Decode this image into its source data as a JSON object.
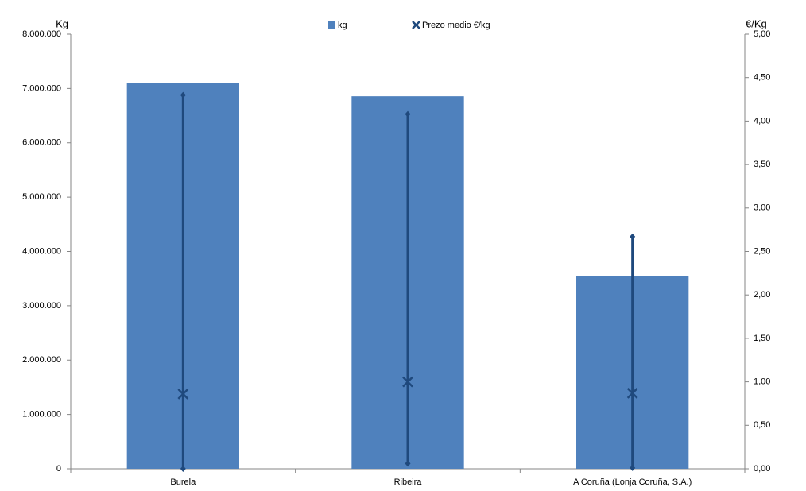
{
  "chart_data": {
    "type": "bar",
    "y_label": "Kg",
    "y2_label": "€/Kg",
    "categories": [
      "Burela",
      "Ribeira",
      "A Coruña (Lonja Coruña, S.A.)"
    ],
    "series": [
      {
        "name": "kg",
        "type": "bar",
        "color": "#4f81bd",
        "values": [
          7105000,
          6857000,
          3550000
        ]
      },
      {
        "name": "Prezo medio €/kg",
        "type": "hilo",
        "axis": "y2",
        "color": "#1f497d",
        "values": [
          0.86,
          1.0,
          0.87
        ],
        "high": [
          4.3,
          4.08,
          2.67
        ],
        "low": [
          0.0,
          0.06,
          0.01
        ]
      }
    ],
    "ylim": [
      0,
      8000000
    ],
    "yticks": [
      0,
      {
        "value": 1000000,
        "label": "1.000.000"
      },
      {
        "value": 2000000,
        "label": "2.000.000"
      },
      {
        "value": 3000000,
        "label": "3.000.000"
      },
      {
        "value": 4000000,
        "label": "4.000.000"
      },
      {
        "value": 5000000,
        "label": "5.000.000"
      },
      {
        "value": 6000000,
        "label": "6.000.000"
      },
      {
        "value": 7000000,
        "label": "7.000.000"
      },
      {
        "value": 8000000,
        "label": "8.000.000"
      }
    ],
    "y2lim": [
      0,
      5
    ],
    "y2ticks": [
      {
        "value": 0,
        "label": "0,00"
      },
      {
        "value": 0.5,
        "label": "0,50"
      },
      {
        "value": 1,
        "label": "1,00"
      },
      {
        "value": 1.5,
        "label": "1,50"
      },
      {
        "value": 2,
        "label": "2,00"
      },
      {
        "value": 2.5,
        "label": "2,50"
      },
      {
        "value": 3,
        "label": "3,00"
      },
      {
        "value": 3.5,
        "label": "3,50"
      },
      {
        "value": 4,
        "label": "4,00"
      },
      {
        "value": 4.5,
        "label": "4,50"
      },
      {
        "value": 5,
        "label": "5,00"
      }
    ],
    "grid": false,
    "legend": "top"
  }
}
